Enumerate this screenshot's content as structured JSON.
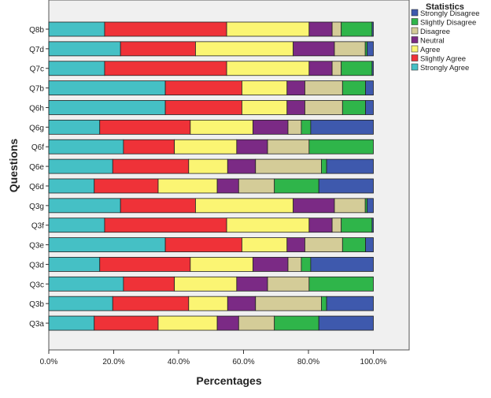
{
  "chart_data": {
    "type": "bar",
    "orientation": "horizontal",
    "stacked": true,
    "title": "",
    "xlabel": "Percentages",
    "ylabel": "Questions",
    "xlim": [
      0,
      100
    ],
    "x_ticks": [
      "0.0%",
      "20.0%",
      "40.0%",
      "60.0%",
      "80.0%",
      "100.0%"
    ],
    "legend_title": "Statistics",
    "legend_position": "right",
    "categories": [
      "Q8b",
      "Q7d",
      "Q7c",
      "Q7b",
      "Q6h",
      "Q6g",
      "Q6f",
      "Q6e",
      "Q6d",
      "Q3g",
      "Q3f",
      "Q3e",
      "Q3d",
      "Q3c",
      "Q3b",
      "Q3a"
    ],
    "series": [
      {
        "name": "Strongly Agree",
        "color": "#45c0c5",
        "values": [
          17.2,
          22.1,
          17.2,
          35.9,
          35.9,
          15.7,
          23.0,
          19.7,
          14.0,
          22.1,
          17.2,
          35.9,
          15.7,
          23.0,
          19.7,
          14.0
        ]
      },
      {
        "name": "Slightly Agree",
        "color": "#ef3238",
        "values": [
          37.6,
          23.1,
          37.6,
          23.6,
          23.6,
          27.9,
          15.7,
          23.4,
          19.7,
          23.1,
          37.6,
          23.6,
          27.9,
          15.7,
          23.4,
          19.7
        ]
      },
      {
        "name": "Agree",
        "color": "#fbf573",
        "values": [
          25.4,
          30.1,
          25.4,
          13.9,
          13.9,
          19.3,
          19.2,
          12.0,
          18.2,
          30.1,
          25.4,
          13.9,
          19.3,
          19.2,
          12.0,
          18.2
        ]
      },
      {
        "name": "Neutral",
        "color": "#7b2a85",
        "values": [
          7.1,
          12.7,
          7.1,
          5.5,
          5.5,
          10.8,
          9.5,
          8.6,
          6.6,
          12.7,
          7.1,
          5.5,
          10.8,
          9.5,
          8.6,
          6.6
        ]
      },
      {
        "name": "Disagree",
        "color": "#d4cc98",
        "values": [
          2.8,
          9.5,
          2.8,
          11.6,
          11.6,
          4.1,
          12.8,
          20.3,
          11.0,
          9.5,
          2.8,
          11.6,
          4.1,
          12.8,
          20.3,
          11.0
        ]
      },
      {
        "name": "Slightly Disagree",
        "color": "#2fb54a",
        "values": [
          9.5,
          0.6,
          9.5,
          7.1,
          7.1,
          2.9,
          19.8,
          1.6,
          13.7,
          0.6,
          9.5,
          7.1,
          2.9,
          19.8,
          1.6,
          13.7
        ]
      },
      {
        "name": "Strongly Disagree",
        "color": "#3e59ad",
        "values": [
          0.4,
          1.9,
          0.4,
          2.4,
          2.4,
          19.3,
          0,
          14.4,
          16.8,
          1.9,
          0.4,
          2.4,
          19.3,
          0,
          14.4,
          16.8
        ]
      }
    ],
    "legend_order": [
      "Strongly Disagree",
      "Slightly Disagree",
      "Disagree",
      "Neutral",
      "Agree",
      "Slightly Agree",
      "Strongly Agree"
    ]
  }
}
